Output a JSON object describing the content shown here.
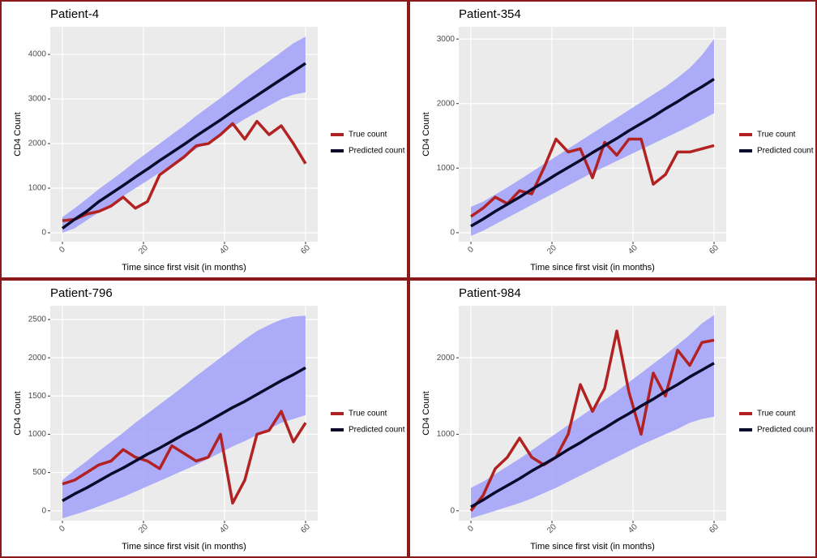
{
  "chart_data": [
    {
      "type": "line",
      "title": "Patient-4",
      "x_label": "Time since first visit (in months)",
      "y_label": "CD4 Count",
      "x": [
        0,
        3,
        6,
        9,
        12,
        15,
        18,
        21,
        24,
        27,
        30,
        33,
        36,
        39,
        42,
        45,
        48,
        51,
        54,
        57,
        60
      ],
      "series": [
        {
          "name": "True count",
          "color": "#b22222",
          "values": [
            270,
            300,
            420,
            480,
            600,
            800,
            550,
            700,
            1300,
            1500,
            1700,
            1950,
            2000,
            2200,
            2450,
            2100,
            2500,
            2200,
            2400,
            2000,
            1550
          ]
        },
        {
          "name": "Predicted count",
          "color": "#0a0a2a",
          "values": [
            100,
            300,
            480,
            700,
            880,
            1060,
            1250,
            1430,
            1620,
            1800,
            1980,
            2170,
            2350,
            2530,
            2720,
            2900,
            3080,
            3260,
            3440,
            3620,
            3800
          ]
        }
      ],
      "band": {
        "color": "#a0a0fa",
        "lower": [
          0,
          100,
          280,
          460,
          640,
          820,
          1000,
          1170,
          1350,
          1530,
          1700,
          1880,
          2050,
          2200,
          2380,
          2550,
          2700,
          2850,
          3000,
          3100,
          3150
        ],
        "upper": [
          350,
          550,
          760,
          980,
          1180,
          1380,
          1600,
          1800,
          2000,
          2200,
          2400,
          2620,
          2820,
          3020,
          3230,
          3450,
          3650,
          3850,
          4050,
          4250,
          4400
        ]
      },
      "xlim": [
        -3,
        63
      ],
      "ylim": [
        -200,
        4620
      ],
      "xticks": [
        0,
        20,
        40,
        60
      ],
      "yticks": [
        0,
        1000,
        2000,
        3000,
        4000
      ],
      "grid": true
    },
    {
      "type": "line",
      "title": "Patient-354",
      "x_label": "Time since first visit (in months)",
      "y_label": "CD4 Count",
      "x": [
        0,
        3,
        6,
        9,
        12,
        15,
        18,
        21,
        24,
        27,
        30,
        33,
        36,
        39,
        42,
        45,
        48,
        51,
        54,
        57,
        60
      ],
      "series": [
        {
          "name": "True count",
          "color": "#b22222",
          "values": [
            250,
            380,
            550,
            450,
            650,
            600,
            1000,
            1450,
            1250,
            1300,
            850,
            1400,
            1200,
            1450,
            1450,
            750,
            900,
            1250,
            1250,
            1300,
            1350
          ]
        },
        {
          "name": "Predicted count",
          "color": "#0a0a2a",
          "values": [
            100,
            210,
            330,
            440,
            550,
            670,
            780,
            900,
            1010,
            1120,
            1240,
            1350,
            1460,
            1580,
            1690,
            1800,
            1920,
            2030,
            2150,
            2260,
            2380
          ]
        }
      ],
      "band": {
        "color": "#a0a0fa",
        "lower": [
          -50,
          30,
          130,
          230,
          330,
          430,
          530,
          630,
          730,
          830,
          930,
          1020,
          1110,
          1200,
          1290,
          1380,
          1470,
          1560,
          1650,
          1750,
          1850
        ],
        "upper": [
          400,
          480,
          590,
          700,
          820,
          940,
          1060,
          1180,
          1300,
          1420,
          1540,
          1660,
          1780,
          1900,
          2020,
          2140,
          2260,
          2400,
          2550,
          2750,
          3000
        ]
      },
      "xlim": [
        -3,
        63
      ],
      "ylim": [
        -140,
        3190
      ],
      "xticks": [
        0,
        20,
        40,
        60
      ],
      "yticks": [
        0,
        1000,
        2000,
        3000
      ],
      "grid": true
    },
    {
      "type": "line",
      "title": "Patient-796",
      "x_label": "Time since first visit (in months)",
      "y_label": "CD4 Count",
      "x": [
        0,
        3,
        6,
        9,
        12,
        15,
        18,
        21,
        24,
        27,
        30,
        33,
        36,
        39,
        42,
        45,
        48,
        51,
        54,
        57,
        60
      ],
      "series": [
        {
          "name": "True count",
          "color": "#b22222",
          "values": [
            350,
            400,
            500,
            600,
            650,
            800,
            700,
            650,
            550,
            850,
            750,
            650,
            700,
            1000,
            100,
            400,
            1000,
            1050,
            1300,
            900,
            1150
          ]
        },
        {
          "name": "Predicted count",
          "color": "#0a0a2a",
          "values": [
            130,
            220,
            300,
            390,
            480,
            560,
            650,
            740,
            820,
            910,
            1000,
            1080,
            1170,
            1260,
            1350,
            1430,
            1520,
            1610,
            1700,
            1780,
            1870
          ]
        }
      ],
      "band": {
        "color": "#a0a0fa",
        "lower": [
          -100,
          -50,
          0,
          60,
          120,
          180,
          250,
          320,
          390,
          460,
          530,
          600,
          680,
          760,
          840,
          910,
          990,
          1070,
          1150,
          1200,
          1250
        ],
        "upper": [
          400,
          530,
          650,
          780,
          900,
          1020,
          1150,
          1270,
          1390,
          1510,
          1630,
          1760,
          1880,
          2000,
          2120,
          2240,
          2350,
          2430,
          2500,
          2540,
          2550
        ]
      },
      "xlim": [
        -3,
        63
      ],
      "ylim": [
        -130,
        2680
      ],
      "xticks": [
        0,
        20,
        40,
        60
      ],
      "yticks": [
        0,
        500,
        1000,
        1500,
        2000,
        2500
      ],
      "grid": true
    },
    {
      "type": "line",
      "title": "Patient-984",
      "x_label": "Time since first visit (in months)",
      "y_label": "CD4 Count",
      "x": [
        0,
        3,
        6,
        9,
        12,
        15,
        18,
        21,
        24,
        27,
        30,
        33,
        36,
        39,
        42,
        45,
        48,
        51,
        54,
        57,
        60
      ],
      "series": [
        {
          "name": "True count",
          "color": "#b22222",
          "values": [
            0,
            200,
            550,
            700,
            950,
            700,
            600,
            700,
            1000,
            1650,
            1300,
            1600,
            2350,
            1550,
            1000,
            1800,
            1500,
            2100,
            1900,
            2200,
            2230
          ]
        },
        {
          "name": "Predicted count",
          "color": "#0a0a2a",
          "values": [
            50,
            140,
            240,
            330,
            420,
            520,
            610,
            700,
            800,
            890,
            990,
            1080,
            1180,
            1270,
            1370,
            1460,
            1560,
            1650,
            1750,
            1840,
            1930
          ]
        }
      ],
      "band": {
        "color": "#a0a0fa",
        "lower": [
          -100,
          -50,
          0,
          50,
          100,
          160,
          230,
          300,
          380,
          460,
          540,
          620,
          700,
          780,
          860,
          930,
          1000,
          1070,
          1150,
          1200,
          1230
        ],
        "upper": [
          300,
          380,
          480,
          580,
          680,
          790,
          900,
          1010,
          1120,
          1230,
          1340,
          1450,
          1560,
          1680,
          1800,
          1920,
          2040,
          2170,
          2300,
          2450,
          2560
        ]
      },
      "xlim": [
        -3,
        63
      ],
      "ylim": [
        -130,
        2680
      ],
      "xticks": [
        0,
        20,
        40,
        60
      ],
      "yticks": [
        0,
        1000,
        2000
      ],
      "grid": true
    }
  ]
}
